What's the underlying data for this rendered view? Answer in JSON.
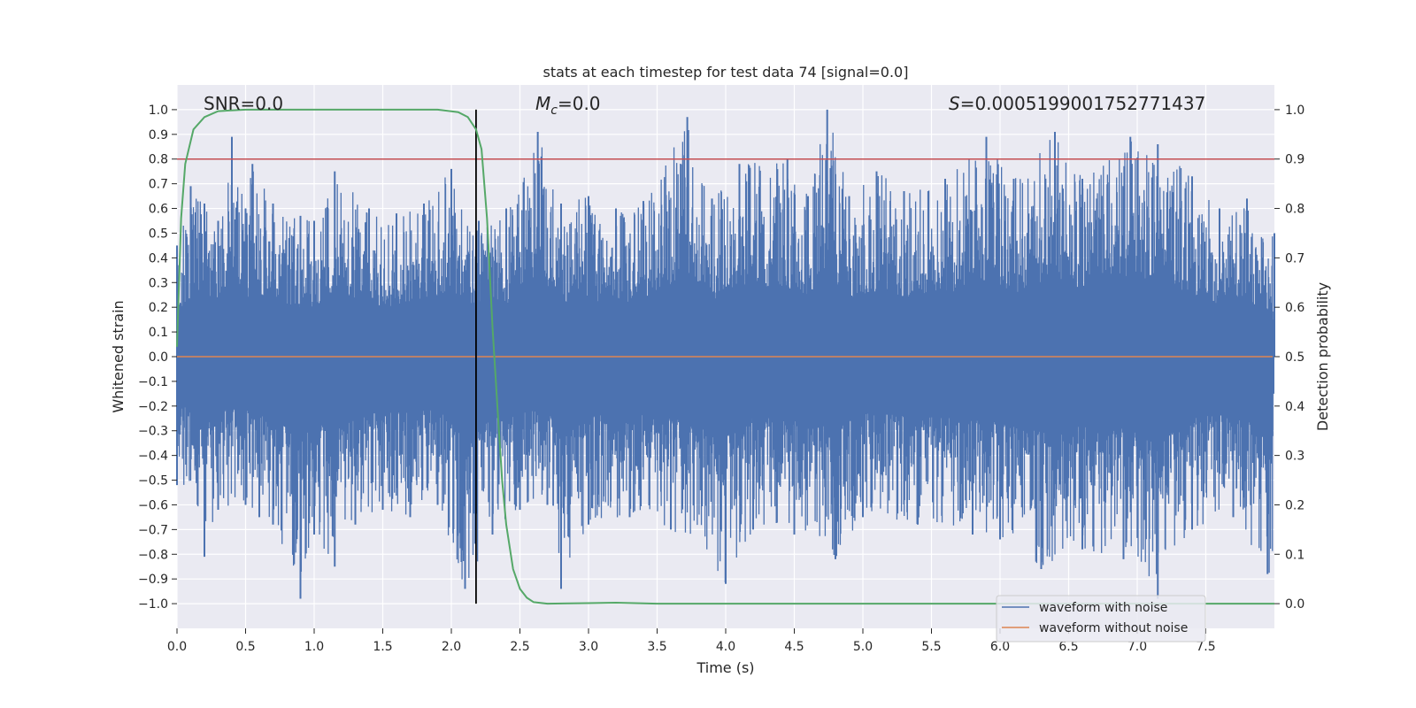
{
  "chart_data": {
    "type": "line",
    "title": "stats at each timestep for test data 74 [signal=0.0]",
    "xlabel": "Time (s)",
    "ylabel_left": "Whitened strain",
    "ylabel_right": "Detection probability",
    "xlim": [
      0.0,
      8.0
    ],
    "ylim_left": [
      -1.1,
      1.1
    ],
    "ylim_right": [
      -0.05,
      1.05
    ],
    "x_ticks": [
      "0.0",
      "0.5",
      "1.0",
      "1.5",
      "2.0",
      "2.5",
      "3.0",
      "3.5",
      "4.0",
      "4.5",
      "5.0",
      "5.5",
      "6.0",
      "6.5",
      "7.0",
      "7.5"
    ],
    "y_ticks_left": [
      "1.0",
      "0.9",
      "0.8",
      "0.7",
      "0.6",
      "0.5",
      "0.4",
      "0.3",
      "0.2",
      "0.1",
      "0.0",
      "−0.1",
      "−0.2",
      "−0.3",
      "−0.4",
      "−0.5",
      "−0.6",
      "−0.7",
      "−0.8",
      "−0.9",
      "−1.0"
    ],
    "y_ticks_right": [
      "1.0",
      "0.9",
      "0.8",
      "0.7",
      "0.6",
      "0.5",
      "0.4",
      "0.3",
      "0.2",
      "0.1",
      "0.0"
    ],
    "grid": true,
    "legend_position": "lower-right",
    "annotations": {
      "snr": "SNR=0.0",
      "mc_symbol": "M",
      "mc_sub": "c",
      "mc_value": "=0.0",
      "s_symbol": "S",
      "s_value": "=0.0005199001752771437"
    },
    "colors": {
      "background": "#eaeaf2",
      "noisy": "#4c72b0",
      "clean": "#dd8452",
      "probability": "#55a868",
      "threshold": "#c44e52",
      "marker": "#000000",
      "grid": "#ffffff"
    },
    "threshold_probability": 0.9,
    "marker_time": 2.18,
    "series": [
      {
        "name": "waveform with noise",
        "role": "strain",
        "description_values": "dense noise envelope",
        "upper_envelope": [
          [
            0.0,
            0.45
          ],
          [
            0.1,
            0.69
          ],
          [
            0.2,
            0.62
          ],
          [
            0.3,
            0.55
          ],
          [
            0.4,
            0.89
          ],
          [
            0.5,
            0.6
          ],
          [
            0.55,
            0.78
          ],
          [
            0.7,
            0.62
          ],
          [
            0.9,
            0.57
          ],
          [
            1.0,
            0.55
          ],
          [
            1.15,
            0.75
          ],
          [
            1.4,
            0.6
          ],
          [
            1.6,
            0.58
          ],
          [
            1.8,
            0.62
          ],
          [
            2.0,
            0.76
          ],
          [
            2.2,
            0.55
          ],
          [
            2.4,
            0.6
          ],
          [
            2.63,
            0.91
          ],
          [
            2.8,
            0.62
          ],
          [
            3.0,
            0.65
          ],
          [
            3.2,
            0.6
          ],
          [
            3.4,
            0.63
          ],
          [
            3.72,
            0.97
          ],
          [
            3.9,
            0.64
          ],
          [
            4.1,
            0.78
          ],
          [
            4.45,
            0.8
          ],
          [
            4.6,
            0.65
          ],
          [
            4.74,
            1.0
          ],
          [
            4.9,
            0.65
          ],
          [
            5.1,
            0.75
          ],
          [
            5.3,
            0.67
          ],
          [
            5.6,
            0.72
          ],
          [
            5.9,
            0.89
          ],
          [
            6.1,
            0.72
          ],
          [
            6.4,
            0.91
          ],
          [
            6.6,
            0.72
          ],
          [
            6.95,
            0.89
          ],
          [
            7.15,
            0.86
          ],
          [
            7.4,
            0.73
          ],
          [
            7.6,
            0.6
          ],
          [
            7.8,
            0.64
          ],
          [
            8.0,
            0.5
          ]
        ],
        "lower_envelope": [
          [
            0.0,
            -0.52
          ],
          [
            0.15,
            -0.6
          ],
          [
            0.2,
            -0.81
          ],
          [
            0.3,
            -0.62
          ],
          [
            0.5,
            -0.6
          ],
          [
            0.6,
            -0.65
          ],
          [
            0.7,
            -0.68
          ],
          [
            0.9,
            -0.98
          ],
          [
            1.0,
            -0.72
          ],
          [
            1.15,
            -0.85
          ],
          [
            1.3,
            -0.68
          ],
          [
            1.5,
            -0.62
          ],
          [
            1.7,
            -0.65
          ],
          [
            1.9,
            -0.6
          ],
          [
            2.1,
            -0.94
          ],
          [
            2.3,
            -0.72
          ],
          [
            2.5,
            -0.62
          ],
          [
            2.7,
            -0.6
          ],
          [
            2.8,
            -0.94
          ],
          [
            3.0,
            -0.68
          ],
          [
            3.3,
            -0.65
          ],
          [
            3.6,
            -0.7
          ],
          [
            4.0,
            -0.92
          ],
          [
            4.2,
            -0.7
          ],
          [
            4.5,
            -0.72
          ],
          [
            4.8,
            -0.82
          ],
          [
            5.0,
            -0.65
          ],
          [
            5.4,
            -0.68
          ],
          [
            5.8,
            -0.72
          ],
          [
            6.0,
            -0.74
          ],
          [
            6.3,
            -0.86
          ],
          [
            6.6,
            -0.78
          ],
          [
            6.9,
            -0.82
          ],
          [
            7.15,
            -0.98
          ],
          [
            7.4,
            -0.7
          ],
          [
            7.7,
            -0.65
          ],
          [
            7.95,
            -0.88
          ]
        ]
      },
      {
        "name": "waveform without noise",
        "role": "strain",
        "values": [
          [
            0.0,
            0.0
          ],
          [
            8.0,
            0.0
          ]
        ]
      },
      {
        "role": "probability",
        "values": [
          [
            0.0,
            0.52
          ],
          [
            0.03,
            0.78
          ],
          [
            0.06,
            0.89
          ],
          [
            0.12,
            0.96
          ],
          [
            0.2,
            0.985
          ],
          [
            0.3,
            0.997
          ],
          [
            0.5,
            1.0
          ],
          [
            1.0,
            1.0
          ],
          [
            1.5,
            1.0
          ],
          [
            1.9,
            1.0
          ],
          [
            2.05,
            0.995
          ],
          [
            2.12,
            0.985
          ],
          [
            2.18,
            0.96
          ],
          [
            2.22,
            0.92
          ],
          [
            2.26,
            0.78
          ],
          [
            2.3,
            0.56
          ],
          [
            2.34,
            0.38
          ],
          [
            2.37,
            0.25
          ],
          [
            2.4,
            0.16
          ],
          [
            2.45,
            0.07
          ],
          [
            2.5,
            0.03
          ],
          [
            2.55,
            0.012
          ],
          [
            2.6,
            0.003
          ],
          [
            2.7,
            0.0
          ],
          [
            3.0,
            0.001
          ],
          [
            3.2,
            0.002
          ],
          [
            3.5,
            0.0
          ],
          [
            4.0,
            0.0
          ],
          [
            5.0,
            0.0
          ],
          [
            6.0,
            0.0
          ],
          [
            7.0,
            0.0
          ],
          [
            8.0,
            0.0
          ]
        ]
      }
    ]
  }
}
